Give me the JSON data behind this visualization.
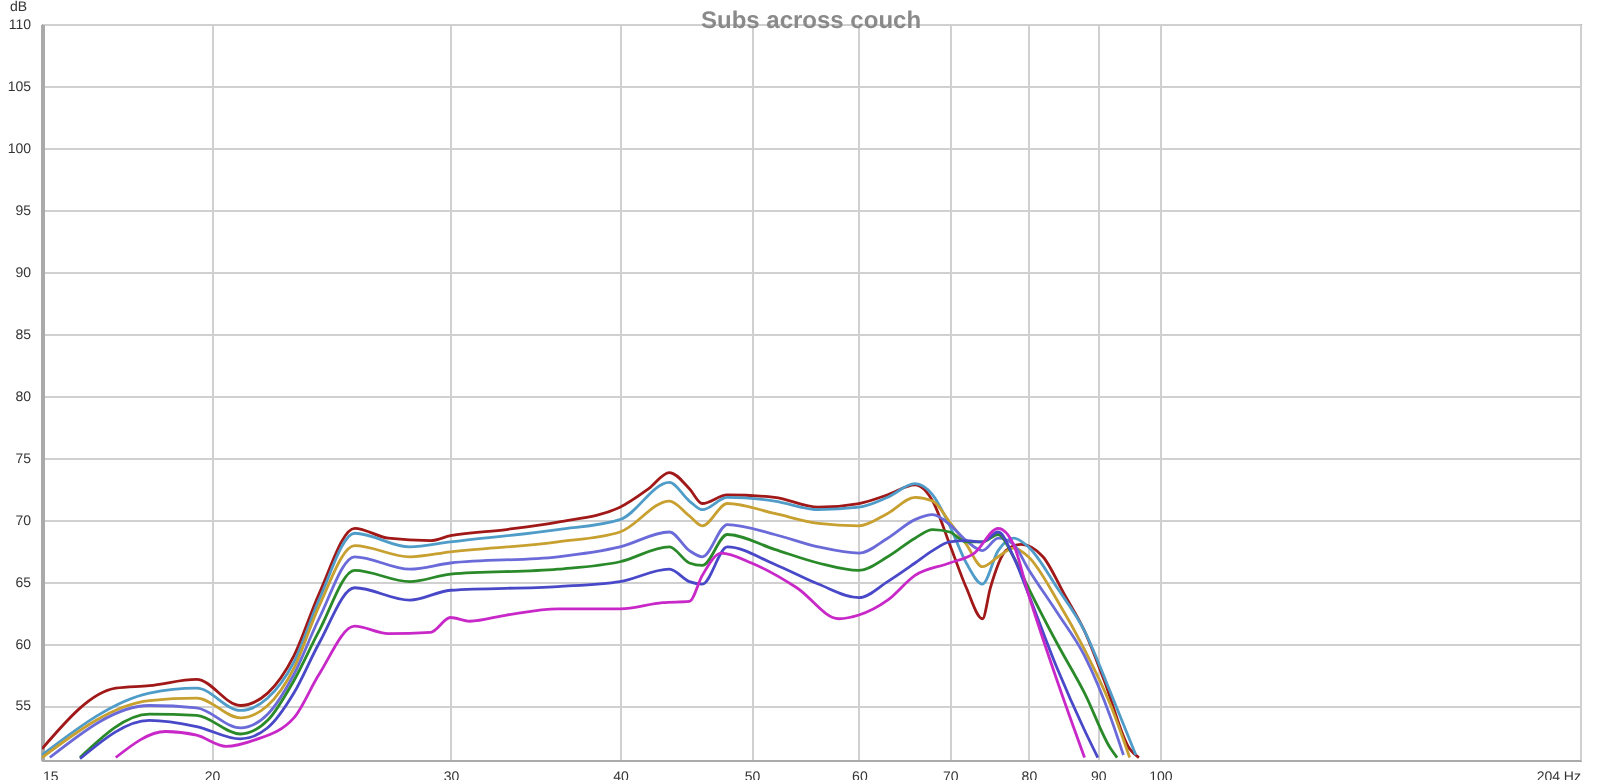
{
  "chart_data": {
    "type": "line",
    "title": "Subs across couch",
    "ylabel": "dB",
    "log": "x",
    "grid": true,
    "marker": "none",
    "line_style": "solid",
    "xlim": [
      15,
      204
    ],
    "ylim": [
      50.6,
      110
    ],
    "xticks": [
      15,
      20,
      30,
      40,
      50,
      60,
      70,
      80,
      90,
      100,
      {
        "value": 204,
        "label": "204 Hz"
      }
    ],
    "yticks": [
      55,
      60,
      65,
      70,
      75,
      80,
      85,
      90,
      95,
      100,
      105,
      110
    ],
    "series": [
      {
        "color": "#a01818",
        "x": [
          15,
          17,
          18,
          19.5,
          21,
          22,
          23,
          24,
          25.5,
          27,
          29,
          30,
          33,
          36,
          40,
          42,
          43.5,
          45,
          46,
          48,
          52,
          56,
          60,
          63,
          66,
          68,
          70,
          72,
          74,
          75,
          77,
          79,
          82,
          85,
          88,
          91,
          95,
          96.5
        ],
        "values": [
          51.5,
          56.4,
          56.6,
          57.1,
          55.0,
          56,
          59,
          64,
          69.3,
          68.5,
          68.3,
          68.7,
          69.2,
          69.8,
          71,
          72.5,
          73.8,
          72.5,
          71.3,
          72,
          71.8,
          71,
          71.3,
          72,
          72.8,
          71.5,
          68,
          64.5,
          62,
          64.5,
          67.5,
          68,
          67,
          64,
          61,
          57,
          51.5,
          50.8
        ]
      },
      {
        "color": "#4f9cc8",
        "x": [
          15,
          18,
          19.5,
          21,
          22,
          23,
          24,
          25.5,
          28,
          30,
          36,
          40,
          43.5,
          45,
          46,
          48,
          52,
          56,
          60,
          63,
          66,
          68,
          70,
          72,
          74,
          76,
          78,
          80,
          84,
          88,
          92,
          96
        ],
        "values": [
          51,
          56.0,
          56.4,
          54.6,
          55.6,
          58.5,
          63.5,
          68.9,
          67.8,
          68.2,
          69.2,
          70,
          73,
          71.5,
          70.8,
          71.8,
          71.5,
          70.8,
          71,
          71.8,
          72.9,
          72,
          69.5,
          66.5,
          64.8,
          67.5,
          68.5,
          67.8,
          64.5,
          61,
          56,
          51
        ]
      },
      {
        "color": "#c8a030",
        "x": [
          15,
          18,
          19.5,
          21,
          22,
          23,
          24,
          25.5,
          28,
          30,
          36,
          40,
          43.5,
          45,
          46,
          48,
          52,
          56,
          60,
          63,
          66,
          68,
          70,
          72,
          74,
          76,
          78,
          80,
          84,
          88,
          92,
          95
        ],
        "values": [
          50.8,
          55.4,
          55.6,
          54.0,
          55,
          58,
          63,
          67.9,
          67.0,
          67.4,
          68.2,
          69,
          71.5,
          70.3,
          69.5,
          71.3,
          70.5,
          69.7,
          69.5,
          70.5,
          71.8,
          71.5,
          69.8,
          68,
          66.2,
          67,
          67.7,
          67,
          63.5,
          59.5,
          55,
          50.8
        ]
      },
      {
        "color": "#6a6ad8",
        "x": [
          15.2,
          18,
          19.5,
          21,
          22,
          23,
          24,
          25.5,
          28,
          30,
          36,
          40,
          43.5,
          45,
          46,
          48,
          52,
          56,
          60,
          63,
          66,
          68,
          70,
          72,
          74,
          76,
          78,
          80,
          84,
          88,
          92,
          94
        ],
        "values": [
          50.8,
          55.0,
          54.8,
          53.2,
          54.3,
          57.5,
          62,
          67,
          66,
          66.5,
          67,
          67.8,
          69,
          67.5,
          67,
          69.6,
          68.8,
          67.8,
          67.3,
          68.5,
          70,
          70.4,
          69.6,
          68.3,
          67.5,
          68.5,
          68,
          66,
          62.5,
          59,
          54,
          51
        ]
      },
      {
        "color": "#2a8a2a",
        "x": [
          16,
          18,
          19.5,
          21,
          22,
          23,
          24,
          25.5,
          28,
          30,
          36,
          40,
          43.5,
          45,
          46,
          48,
          52,
          56,
          60,
          63,
          66,
          68,
          70,
          72,
          74,
          76,
          78,
          80,
          84,
          88,
          92,
          93
        ],
        "values": [
          50.8,
          54.3,
          54.2,
          52.7,
          53.8,
          57,
          61,
          65.9,
          65,
          65.6,
          66,
          66.6,
          67.8,
          66.5,
          66.3,
          68.8,
          67.6,
          66.5,
          65.9,
          67,
          68.5,
          69.2,
          69,
          68.2,
          68.2,
          68.8,
          67,
          64.5,
          60,
          56,
          51.5,
          50.8
        ]
      },
      {
        "color": "#4848c8",
        "x": [
          16,
          18,
          19.5,
          21,
          22,
          23,
          24,
          25.5,
          28,
          30,
          36,
          40,
          43.5,
          45,
          46,
          48,
          52,
          56,
          60,
          63,
          66,
          68,
          70,
          72,
          74,
          76,
          78,
          80,
          84,
          88,
          90
        ],
        "values": [
          50.7,
          53.8,
          53.3,
          52.3,
          53.2,
          56,
          60,
          64.5,
          63.5,
          64.3,
          64.6,
          65,
          66,
          65,
          64.8,
          67.8,
          66.4,
          64.8,
          63.7,
          65,
          66.5,
          67.5,
          68.2,
          68.3,
          68.2,
          69,
          67,
          64,
          58,
          53,
          50.8
        ]
      },
      {
        "color": "#c828c8",
        "x": [
          17,
          18.5,
          19.5,
          20.5,
          21.5,
          23,
          24,
          25.5,
          27,
          29,
          30,
          31,
          33,
          36,
          40,
          43,
          45,
          46,
          47.5,
          50,
          54,
          58,
          60,
          63,
          66,
          70,
          73,
          76,
          78,
          80,
          84,
          88
        ],
        "values": [
          50.8,
          52.9,
          52.6,
          51.7,
          52.2,
          54,
          57.5,
          61.4,
          60.8,
          60.9,
          62.1,
          61.8,
          62.3,
          62.8,
          62.8,
          63.3,
          63.4,
          65.5,
          67.3,
          66.5,
          64.5,
          62,
          62.3,
          63.5,
          65.5,
          66.5,
          67.3,
          69.3,
          68,
          64,
          57,
          50.8
        ]
      }
    ]
  }
}
